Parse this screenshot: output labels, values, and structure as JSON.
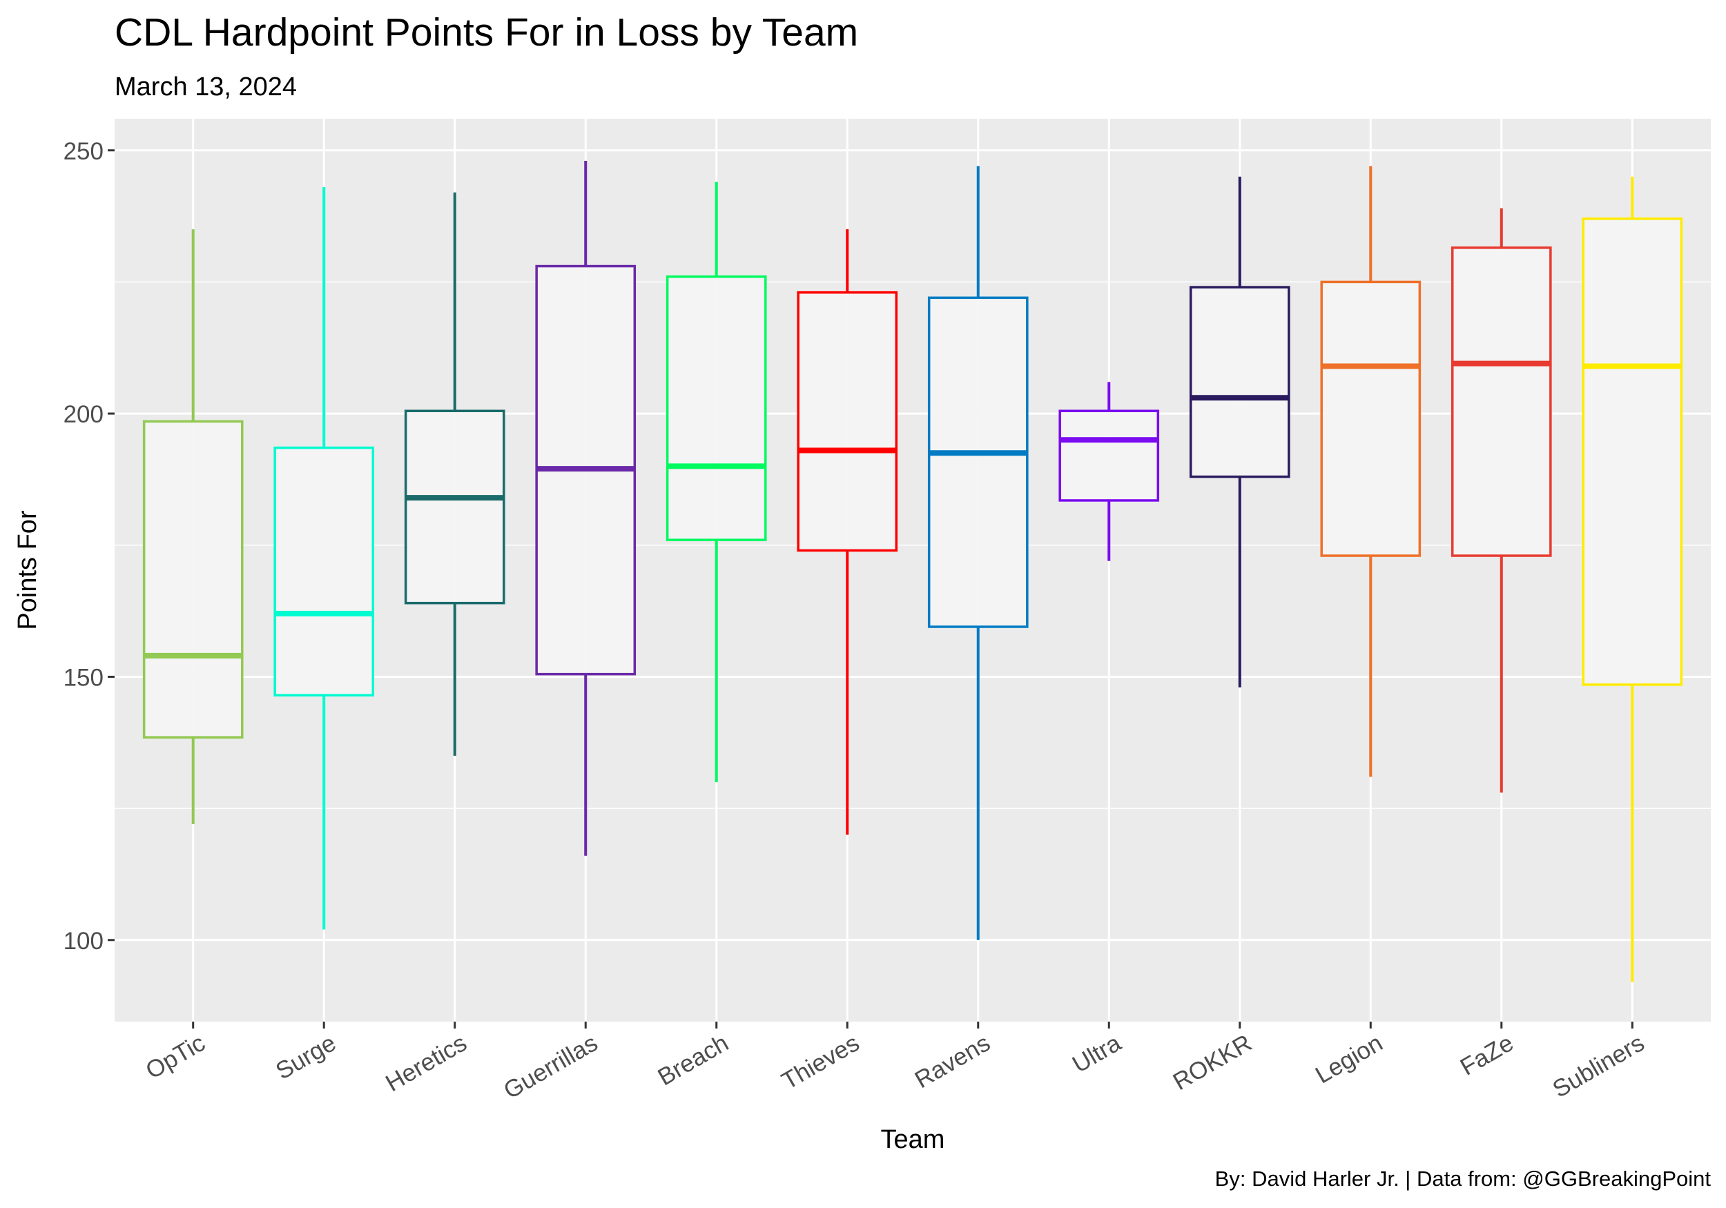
{
  "chart_data": {
    "type": "boxplot",
    "title": "CDL Hardpoint Points For in Loss by Team",
    "subtitle": "March 13, 2024",
    "caption": "By: David Harler Jr. | Data from: @GGBreakingPoint",
    "xlabel": "Team",
    "ylabel": "Points For",
    "ylim": [
      84.5,
      256
    ],
    "yticks": [
      100,
      150,
      200,
      250
    ],
    "grid": true,
    "panel_background": "#ebebeb",
    "box_fill": "#f4f4f4",
    "categories": [
      "OpTic",
      "Surge",
      "Heretics",
      "Guerrillas",
      "Breach",
      "Thieves",
      "Ravens",
      "Ultra",
      "ROKKR",
      "Legion",
      "FaZe",
      "Subliners"
    ],
    "series": [
      {
        "category": "OpTic",
        "color": "#92c952",
        "min": 122,
        "q1": 138.5,
        "median": 154,
        "q3": 198.5,
        "max": 235
      },
      {
        "category": "Surge",
        "color": "#00fbd0",
        "min": 102,
        "q1": 146.5,
        "median": 162,
        "q3": 193.5,
        "max": 243
      },
      {
        "category": "Heretics",
        "color": "#1a6a6a",
        "min": 135,
        "q1": 164,
        "median": 184,
        "q3": 200.5,
        "max": 242
      },
      {
        "category": "Guerrillas",
        "color": "#6a29a8",
        "min": 116,
        "q1": 150.5,
        "median": 189.5,
        "q3": 228,
        "max": 248
      },
      {
        "category": "Breach",
        "color": "#00fa60",
        "min": 130,
        "q1": 176,
        "median": 190,
        "q3": 226,
        "max": 244
      },
      {
        "category": "Thieves",
        "color": "#ff0000",
        "min": 120,
        "q1": 174,
        "median": 193,
        "q3": 223,
        "max": 235
      },
      {
        "category": "Ravens",
        "color": "#007bc3",
        "min": 100,
        "q1": 159.5,
        "median": 192.5,
        "q3": 222,
        "max": 247
      },
      {
        "category": "Ultra",
        "color": "#7a0af0",
        "min": 172,
        "q1": 183.5,
        "median": 195,
        "q3": 200.5,
        "max": 206
      },
      {
        "category": "ROKKR",
        "color": "#2a1a5e",
        "min": 148,
        "q1": 188,
        "median": 203,
        "q3": 224,
        "max": 245
      },
      {
        "category": "Legion",
        "color": "#ef7028",
        "min": 131,
        "q1": 173,
        "median": 209,
        "q3": 225,
        "max": 247
      },
      {
        "category": "FaZe",
        "color": "#e83a30",
        "min": 128,
        "q1": 173,
        "median": 209.5,
        "q3": 231.5,
        "max": 239
      },
      {
        "category": "Subliners",
        "color": "#ffeb00",
        "min": 92,
        "q1": 148.5,
        "median": 209,
        "q3": 237,
        "max": 245
      }
    ]
  }
}
